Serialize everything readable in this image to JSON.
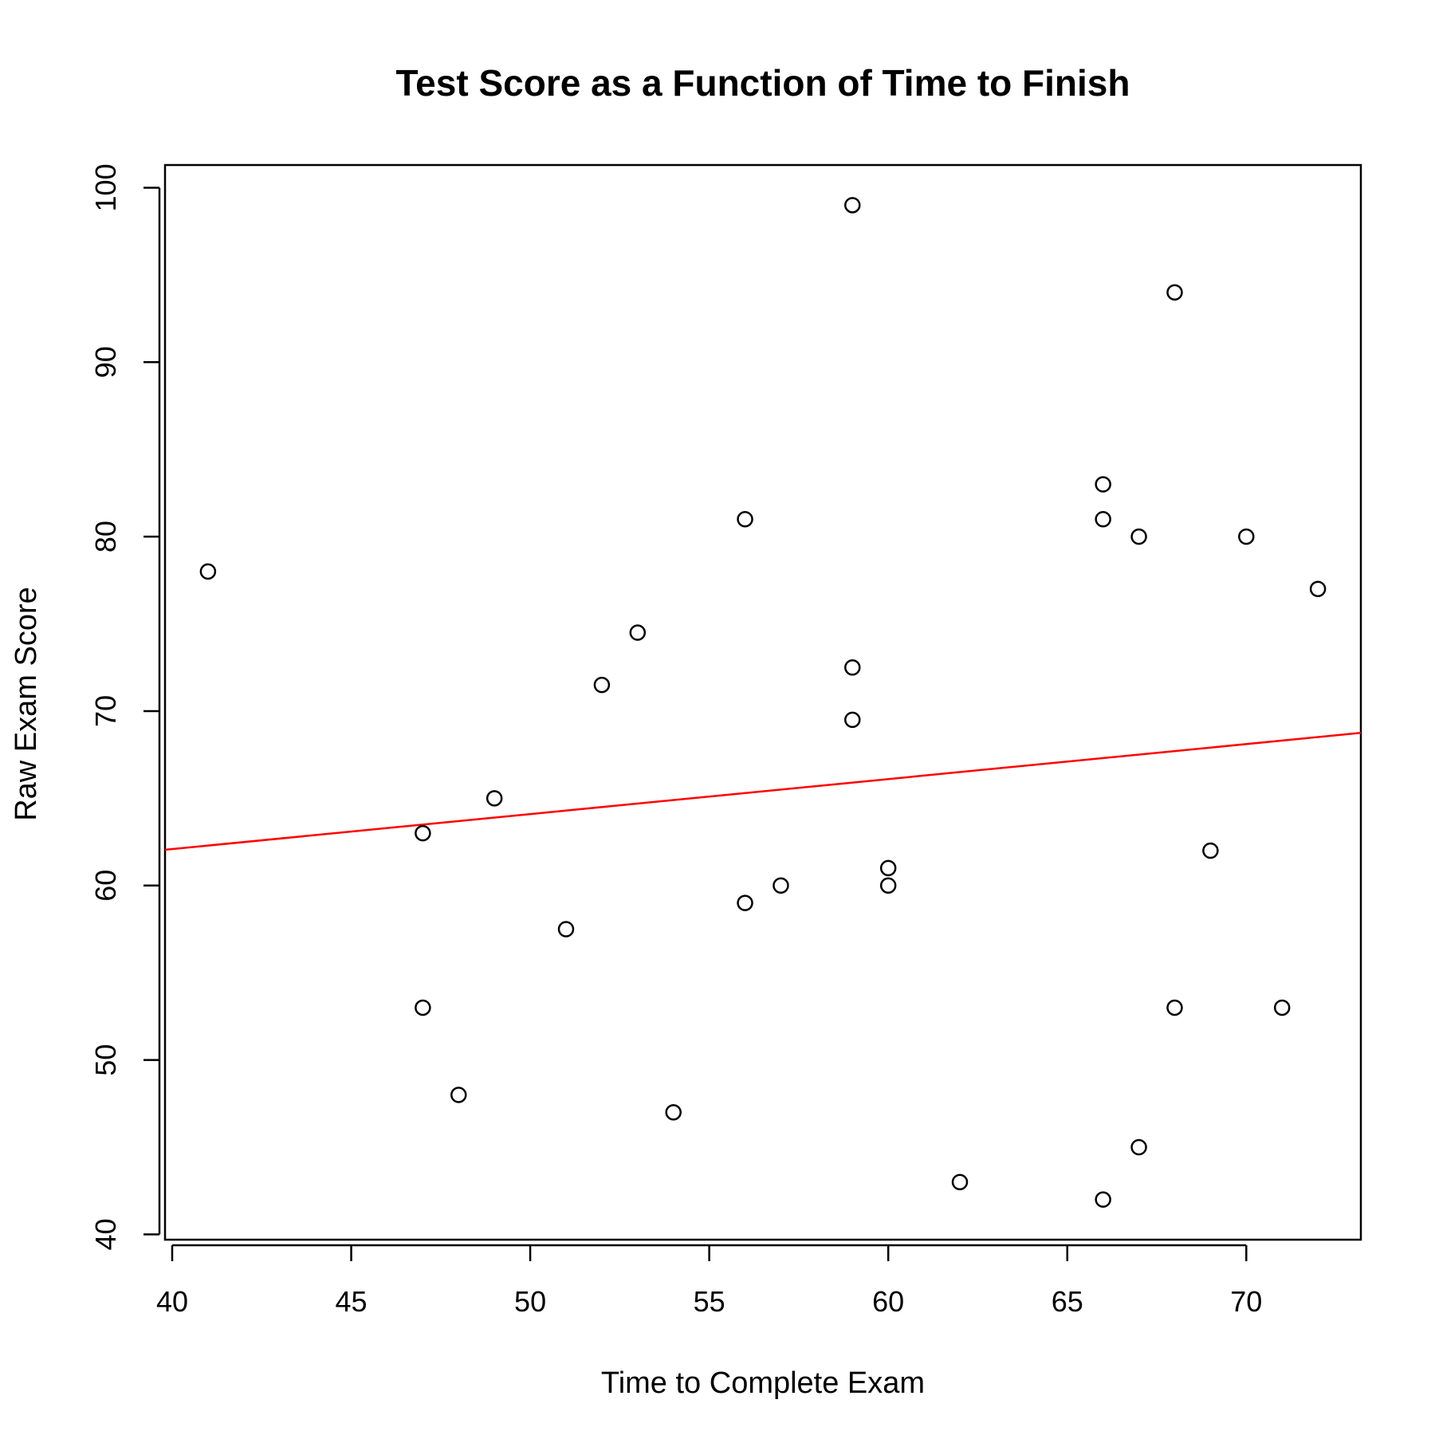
{
  "chart_data": {
    "type": "scatter",
    "title": "Test Score as a Function of Time to Finish",
    "xlabel": "Time to Complete Exam",
    "ylabel": "Raw Exam Score",
    "xlim": [
      39.8,
      73.2
    ],
    "ylim": [
      39.7,
      101.3
    ],
    "x_ticks": [
      40,
      45,
      50,
      55,
      60,
      65,
      70
    ],
    "y_ticks": [
      40,
      50,
      60,
      70,
      80,
      90,
      100
    ],
    "grid": false,
    "legend": "none",
    "point_style": "open-circle",
    "point_color": "#000000",
    "points": [
      {
        "x": 41,
        "y": 78
      },
      {
        "x": 47,
        "y": 63
      },
      {
        "x": 47,
        "y": 53
      },
      {
        "x": 48,
        "y": 48
      },
      {
        "x": 49,
        "y": 65
      },
      {
        "x": 51,
        "y": 57.5
      },
      {
        "x": 52,
        "y": 71.5
      },
      {
        "x": 53,
        "y": 74.5
      },
      {
        "x": 54,
        "y": 47
      },
      {
        "x": 56,
        "y": 81
      },
      {
        "x": 56,
        "y": 59
      },
      {
        "x": 57,
        "y": 60
      },
      {
        "x": 59,
        "y": 99
      },
      {
        "x": 59,
        "y": 72.5
      },
      {
        "x": 59,
        "y": 69.5
      },
      {
        "x": 60,
        "y": 61
      },
      {
        "x": 60,
        "y": 60
      },
      {
        "x": 62,
        "y": 43
      },
      {
        "x": 66,
        "y": 83
      },
      {
        "x": 66,
        "y": 81
      },
      {
        "x": 66,
        "y": 42
      },
      {
        "x": 67,
        "y": 80
      },
      {
        "x": 67,
        "y": 45
      },
      {
        "x": 68,
        "y": 94
      },
      {
        "x": 68,
        "y": 53
      },
      {
        "x": 69,
        "y": 62
      },
      {
        "x": 70,
        "y": 80
      },
      {
        "x": 71,
        "y": 53
      },
      {
        "x": 72,
        "y": 77
      }
    ],
    "fit_line": {
      "color": "#ff0000",
      "from": {
        "x": 39.8,
        "y": 62.05
      },
      "to": {
        "x": 73.2,
        "y": 68.75
      }
    }
  }
}
